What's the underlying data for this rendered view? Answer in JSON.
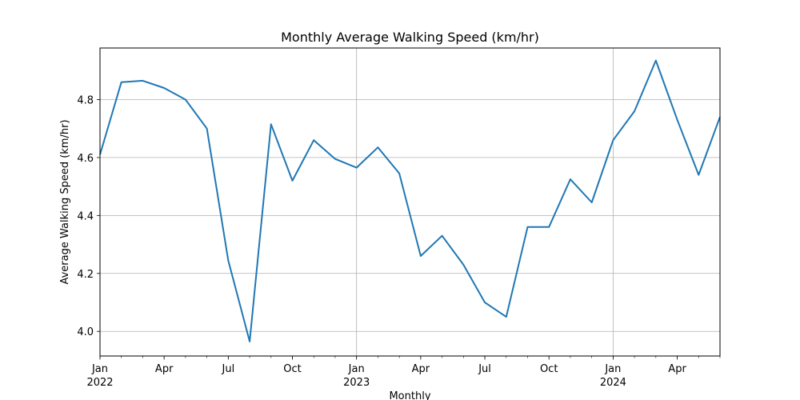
{
  "chart_data": {
    "type": "line",
    "title": "Monthly Average Walking Speed (km/hr)",
    "xlabel": "Monthly",
    "ylabel": "Average Walking Speed (km/hr)",
    "x": [
      "2022-01",
      "2022-02",
      "2022-03",
      "2022-04",
      "2022-05",
      "2022-06",
      "2022-07",
      "2022-08",
      "2022-09",
      "2022-10",
      "2022-11",
      "2022-12",
      "2023-01",
      "2023-02",
      "2023-03",
      "2023-04",
      "2023-05",
      "2023-06",
      "2023-07",
      "2023-08",
      "2023-09",
      "2023-10",
      "2023-11",
      "2023-12",
      "2024-01",
      "2024-02",
      "2024-03",
      "2024-04",
      "2024-05",
      "2024-06"
    ],
    "series": [
      {
        "values": [
          4.61,
          4.86,
          4.865,
          4.84,
          4.8,
          4.7,
          4.245,
          3.965,
          4.715,
          4.52,
          4.66,
          4.595,
          4.565,
          4.635,
          4.545,
          4.26,
          4.33,
          4.23,
          4.1,
          4.05,
          4.36,
          4.36,
          4.525,
          4.445,
          4.66,
          4.76,
          4.935,
          4.73,
          4.54,
          4.74
        ],
        "color": "#1f77b4"
      }
    ],
    "ylim": [
      3.915,
      4.978
    ],
    "yticks": [
      4.0,
      4.2,
      4.4,
      4.6,
      4.8
    ],
    "ytick_labels": [
      "4.0",
      "4.2",
      "4.4",
      "4.6",
      "4.8"
    ],
    "xticks": [
      {
        "month": "2022-01",
        "label": "Jan",
        "year": "2022"
      },
      {
        "month": "2022-04",
        "label": "Apr",
        "year": ""
      },
      {
        "month": "2022-07",
        "label": "Jul",
        "year": ""
      },
      {
        "month": "2022-10",
        "label": "Oct",
        "year": ""
      },
      {
        "month": "2023-01",
        "label": "Jan",
        "year": "2023"
      },
      {
        "month": "2023-04",
        "label": "Apr",
        "year": ""
      },
      {
        "month": "2023-07",
        "label": "Jul",
        "year": ""
      },
      {
        "month": "2023-10",
        "label": "Oct",
        "year": ""
      },
      {
        "month": "2024-01",
        "label": "Jan",
        "year": "2024"
      },
      {
        "month": "2024-04",
        "label": "Apr",
        "year": ""
      }
    ],
    "grid": true,
    "grid_x": "major",
    "grid_y": "major",
    "legend": "none"
  }
}
